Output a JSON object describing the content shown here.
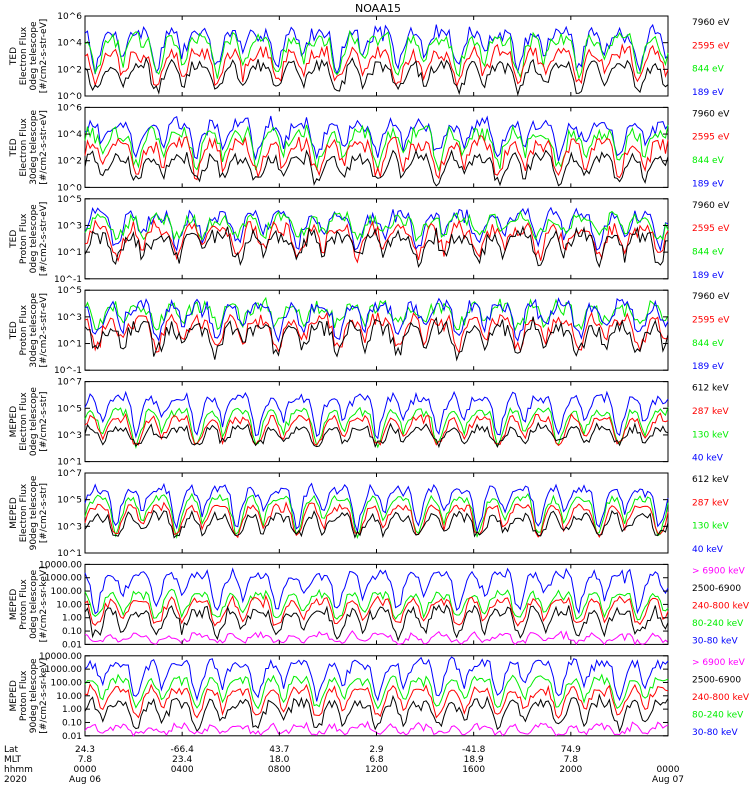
{
  "title": "NOAA15",
  "colors": {
    "blue": "#0000ff",
    "red": "#ff0000",
    "green": "#00ee00",
    "black": "#000000",
    "magenta": "#ff00ff"
  },
  "chart_data": [
    {
      "type": "line",
      "ylabel": [
        "TED",
        "Electron Flux",
        "0deg telescope",
        "[#/cm2-s-str-eV]"
      ],
      "ylim": [
        1,
        1000000
      ],
      "log": true,
      "ticks": [
        {
          "v": 1,
          "label": "10^0"
        },
        {
          "v": 100,
          "label": "10^2"
        },
        {
          "v": 10000,
          "label": "10^4"
        },
        {
          "v": 1000000,
          "label": "10^6"
        }
      ],
      "legend": [
        {
          "label": "7960 eV",
          "color": "#000000"
        },
        {
          "label": "2595 eV",
          "color": "#ff0000"
        },
        {
          "label": "844 eV",
          "color": "#00ee00"
        },
        {
          "label": "189 eV",
          "color": "#0000ff"
        }
      ],
      "series": [
        {
          "name": "189 eV",
          "color": "#0000ff",
          "base": 100,
          "peak": 100000,
          "noise": 0.5
        },
        {
          "name": "844 eV",
          "color": "#00ee00",
          "base": 30,
          "peak": 30000,
          "noise": 0.5
        },
        {
          "name": "2595 eV",
          "color": "#ff0000",
          "base": 10,
          "peak": 3000,
          "noise": 0.5
        },
        {
          "name": "7960 eV",
          "color": "#000000",
          "base": 3,
          "peak": 300,
          "noise": 0.4
        }
      ]
    },
    {
      "type": "line",
      "ylabel": [
        "TED",
        "Electron Flux",
        "30deg telescope",
        "[#/cm2-s-str-eV]"
      ],
      "ylim": [
        1,
        1000000
      ],
      "log": true,
      "ticks": [
        {
          "v": 1,
          "label": "10^0"
        },
        {
          "v": 100,
          "label": "10^2"
        },
        {
          "v": 10000,
          "label": "10^4"
        },
        {
          "v": 1000000,
          "label": "10^6"
        }
      ],
      "legend": [
        {
          "label": "7960 eV",
          "color": "#000000"
        },
        {
          "label": "2595 eV",
          "color": "#ff0000"
        },
        {
          "label": "844 eV",
          "color": "#00ee00"
        },
        {
          "label": "189 eV",
          "color": "#0000ff"
        }
      ],
      "series": [
        {
          "name": "189 eV",
          "color": "#0000ff",
          "base": 200,
          "peak": 100000,
          "noise": 0.5
        },
        {
          "name": "844 eV",
          "color": "#00ee00",
          "base": 40,
          "peak": 20000,
          "noise": 0.5
        },
        {
          "name": "2595 eV",
          "color": "#ff0000",
          "base": 10,
          "peak": 3000,
          "noise": 0.5
        },
        {
          "name": "7960 eV",
          "color": "#000000",
          "base": 3,
          "peak": 300,
          "noise": 0.4
        }
      ]
    },
    {
      "type": "line",
      "ylabel": [
        "TED",
        "Proton Flux",
        "0deg telescope",
        "[#/cm2-s-str-eV]"
      ],
      "ylim": [
        0.1,
        100000
      ],
      "log": true,
      "ticks": [
        {
          "v": 0.1,
          "label": "10^-1"
        },
        {
          "v": 10,
          "label": "10^1"
        },
        {
          "v": 1000,
          "label": "10^3"
        },
        {
          "v": 100000,
          "label": "10^5"
        }
      ],
      "legend": [
        {
          "label": "7960 eV",
          "color": "#000000"
        },
        {
          "label": "2595 eV",
          "color": "#ff0000"
        },
        {
          "label": "844 eV",
          "color": "#00ee00"
        },
        {
          "label": "189 eV",
          "color": "#0000ff"
        }
      ],
      "series": [
        {
          "name": "189 eV",
          "color": "#0000ff",
          "base": 30,
          "peak": 10000,
          "noise": 0.5
        },
        {
          "name": "844 eV",
          "color": "#00ee00",
          "base": 200,
          "peak": 5000,
          "noise": 0.5
        },
        {
          "name": "2595 eV",
          "color": "#ff0000",
          "base": 5,
          "peak": 1000,
          "noise": 0.5
        },
        {
          "name": "7960 eV",
          "color": "#000000",
          "base": 3,
          "peak": 300,
          "noise": 0.6
        }
      ]
    },
    {
      "type": "line",
      "ylabel": [
        "TED",
        "Proton Flux",
        "30deg telescope",
        "[#/cm2-s-str-eV]"
      ],
      "ylim": [
        0.1,
        100000
      ],
      "log": true,
      "ticks": [
        {
          "v": 0.1,
          "label": "10^-1"
        },
        {
          "v": 10,
          "label": "10^1"
        },
        {
          "v": 1000,
          "label": "10^3"
        },
        {
          "v": 100000,
          "label": "10^5"
        }
      ],
      "legend": [
        {
          "label": "7960 eV",
          "color": "#000000"
        },
        {
          "label": "2595 eV",
          "color": "#ff0000"
        },
        {
          "label": "844 eV",
          "color": "#00ee00"
        },
        {
          "label": "189 eV",
          "color": "#0000ff"
        }
      ],
      "series": [
        {
          "name": "844 eV",
          "color": "#00ee00",
          "base": 300,
          "peak": 10000,
          "noise": 0.5
        },
        {
          "name": "189 eV",
          "color": "#0000ff",
          "base": 30,
          "peak": 10000,
          "noise": 0.5
        },
        {
          "name": "2595 eV",
          "color": "#ff0000",
          "base": 5,
          "peak": 1000,
          "noise": 0.5
        },
        {
          "name": "7960 eV",
          "color": "#000000",
          "base": 2,
          "peak": 300,
          "noise": 0.6
        }
      ]
    },
    {
      "type": "line",
      "ylabel": [
        "MEPED",
        "Electron Flux",
        "0deg telescope",
        "[#/cm2-s-str]"
      ],
      "ylim": [
        10,
        10000000
      ],
      "log": true,
      "ticks": [
        {
          "v": 10,
          "label": "10^1"
        },
        {
          "v": 1000,
          "label": "10^3"
        },
        {
          "v": 100000,
          "label": "10^5"
        },
        {
          "v": 10000000,
          "label": "10^7"
        }
      ],
      "legend": [
        {
          "label": "612 keV",
          "color": "#000000"
        },
        {
          "label": "287 keV",
          "color": "#ff0000"
        },
        {
          "label": "130 keV",
          "color": "#00ee00"
        },
        {
          "label": "40 keV",
          "color": "#0000ff"
        }
      ],
      "series": [
        {
          "name": "40 keV",
          "color": "#0000ff",
          "base": 300,
          "peak": 1000000,
          "noise": 0.3
        },
        {
          "name": "130 keV",
          "color": "#00ee00",
          "base": 150,
          "peak": 100000,
          "noise": 0.2
        },
        {
          "name": "287 keV",
          "color": "#ff0000",
          "base": 200,
          "peak": 30000,
          "noise": 0.2
        },
        {
          "name": "612 keV",
          "color": "#000000",
          "base": 250,
          "peak": 5000,
          "noise": 0.3
        }
      ]
    },
    {
      "type": "line",
      "ylabel": [
        "MEPED",
        "Electron Flux",
        "90deg telescope",
        "[#/cm2-s-str]"
      ],
      "ylim": [
        10,
        10000000
      ],
      "log": true,
      "ticks": [
        {
          "v": 10,
          "label": "10^1"
        },
        {
          "v": 1000,
          "label": "10^3"
        },
        {
          "v": 100000,
          "label": "10^5"
        },
        {
          "v": 10000000,
          "label": "10^7"
        }
      ],
      "legend": [
        {
          "label": "612 keV",
          "color": "#000000"
        },
        {
          "label": "287 keV",
          "color": "#ff0000"
        },
        {
          "label": "130 keV",
          "color": "#00ee00"
        },
        {
          "label": "40 keV",
          "color": "#0000ff"
        }
      ],
      "series": [
        {
          "name": "40 keV",
          "color": "#0000ff",
          "base": 300,
          "peak": 1000000,
          "noise": 0.3
        },
        {
          "name": "130 keV",
          "color": "#00ee00",
          "base": 150,
          "peak": 200000,
          "noise": 0.2
        },
        {
          "name": "287 keV",
          "color": "#ff0000",
          "base": 200,
          "peak": 50000,
          "noise": 0.2
        },
        {
          "name": "612 keV",
          "color": "#000000",
          "base": 250,
          "peak": 10000,
          "noise": 0.3
        }
      ]
    },
    {
      "type": "line",
      "ylabel": [
        "MEPED",
        "Proton Flux",
        "0deg telescope",
        "[#/cm2-s-sr-keV]"
      ],
      "ylim": [
        0.01,
        10000
      ],
      "log": true,
      "ticks": [
        {
          "v": 0.01,
          "label": "0.01"
        },
        {
          "v": 0.1,
          "label": "0.10"
        },
        {
          "v": 1,
          "label": "1.00"
        },
        {
          "v": 10,
          "label": "10.00"
        },
        {
          "v": 100,
          "label": "100.00"
        },
        {
          "v": 1000,
          "label": "1000.00"
        },
        {
          "v": 10000,
          "label": "10000.00"
        }
      ],
      "legend": [
        {
          "label": "> 6900 keV",
          "color": "#ff00ff"
        },
        {
          "label": "2500-6900",
          "color": "#000000"
        },
        {
          "label": "240-800 keV",
          "color": "#ff0000"
        },
        {
          "label": "80-240 keV",
          "color": "#00ee00"
        },
        {
          "label": "30-80 keV",
          "color": "#0000ff"
        }
      ],
      "series": [
        {
          "name": "30-80 keV",
          "color": "#0000ff",
          "base": 3,
          "peak": 3000,
          "noise": 0.3
        },
        {
          "name": "80-240 keV",
          "color": "#00ee00",
          "base": 1,
          "peak": 100,
          "noise": 0.2
        },
        {
          "name": "240-800 keV",
          "color": "#ff0000",
          "base": 0.3,
          "peak": 30,
          "noise": 0.2
        },
        {
          "name": "2500-6900",
          "color": "#000000",
          "base": 0.05,
          "peak": 5,
          "noise": 0.4
        },
        {
          "name": "> 6900 keV",
          "color": "#ff00ff",
          "base": 0.015,
          "peak": 0.08,
          "noise": 0.2
        }
      ]
    },
    {
      "type": "line",
      "ylabel": [
        "MEPED",
        "Proton Flux",
        "90deg telescope",
        "[#/cm2-s-sr-keV]"
      ],
      "ylim": [
        0.01,
        10000
      ],
      "log": true,
      "ticks": [
        {
          "v": 0.01,
          "label": "0.01"
        },
        {
          "v": 0.1,
          "label": "0.10"
        },
        {
          "v": 1,
          "label": "1.00"
        },
        {
          "v": 10,
          "label": "10.00"
        },
        {
          "v": 100,
          "label": "100.00"
        },
        {
          "v": 1000,
          "label": "1000.00"
        },
        {
          "v": 10000,
          "label": "10000.00"
        }
      ],
      "legend": [
        {
          "label": "> 6900 keV",
          "color": "#ff00ff"
        },
        {
          "label": "2500-6900",
          "color": "#000000"
        },
        {
          "label": "240-800 keV",
          "color": "#ff0000"
        },
        {
          "label": "80-240 keV",
          "color": "#00ee00"
        },
        {
          "label": "30-80 keV",
          "color": "#0000ff"
        }
      ],
      "series": [
        {
          "name": "30-80 keV",
          "color": "#0000ff",
          "base": 5,
          "peak": 5000,
          "noise": 0.3
        },
        {
          "name": "80-240 keV",
          "color": "#00ee00",
          "base": 1.5,
          "peak": 300,
          "noise": 0.2
        },
        {
          "name": "240-800 keV",
          "color": "#ff0000",
          "base": 0.3,
          "peak": 50,
          "noise": 0.2
        },
        {
          "name": "2500-6900",
          "color": "#000000",
          "base": 0.05,
          "peak": 5,
          "noise": 0.4
        },
        {
          "name": "> 6900 keV",
          "color": "#ff00ff",
          "base": 0.015,
          "peak": 0.08,
          "noise": 0.2
        }
      ]
    }
  ],
  "x_axis": {
    "row_labels": [
      "Lat",
      "MLT",
      "hhmm",
      "2020"
    ],
    "ticks": [
      {
        "lat": "24.3",
        "mlt": "7.8",
        "hhmm": "0000",
        "date": "Aug 06"
      },
      {
        "lat": "-66.4",
        "mlt": "23.4",
        "hhmm": "0400",
        "date": ""
      },
      {
        "lat": "43.7",
        "mlt": "18.0",
        "hhmm": "0800",
        "date": ""
      },
      {
        "lat": "2.9",
        "mlt": "6.8",
        "hhmm": "1200",
        "date": ""
      },
      {
        "lat": "-41.8",
        "mlt": "18.9",
        "hhmm": "1600",
        "date": ""
      },
      {
        "lat": "74.9",
        "mlt": "7.8",
        "hhmm": "2000",
        "date": ""
      },
      {
        "lat": "",
        "mlt": "",
        "hhmm": "0000",
        "date": "Aug 07"
      }
    ]
  }
}
